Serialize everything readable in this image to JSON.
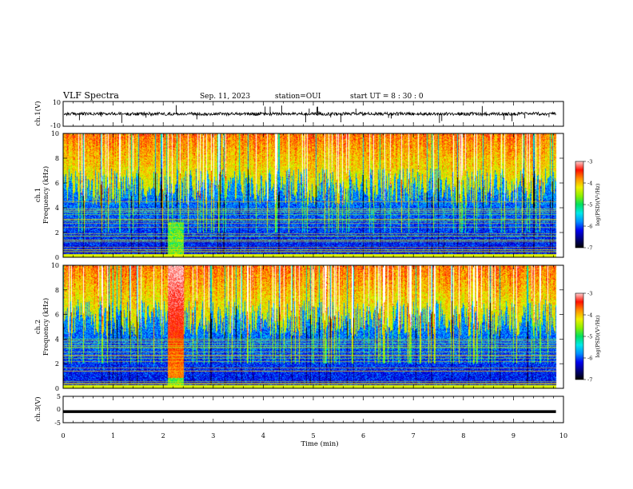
{
  "header": {
    "title": "VLF Spectra",
    "date": "Sep. 11, 2023",
    "station": "station=OUI",
    "start_time": "start  UT =   8 : 30 : 0"
  },
  "colormap": {
    "stops": [
      "#000000",
      "#00007a",
      "#0000f0",
      "#0090ff",
      "#00e8e8",
      "#00e060",
      "#8cf000",
      "#f0f000",
      "#ff9000",
      "#ff1000",
      "#ffd0d0",
      "#ffffff"
    ]
  },
  "chart_data": [
    {
      "type": "line",
      "panel": "ch1-waveform",
      "ylabel": "ch.1(V)",
      "ylim": [
        -10,
        10
      ],
      "yticks": [
        "10",
        "-10"
      ],
      "baseline": 0
    },
    {
      "type": "heatmap",
      "panel": "ch1-spectrogram",
      "ylabel": "ch.1\nFrequency (kHz)",
      "ylim": [
        0,
        10
      ],
      "yticks": [
        "0",
        "2",
        "4",
        "6",
        "8",
        "10"
      ],
      "colorbar": {
        "label": "log(PSD)(V²/Hz)",
        "range": [
          -7,
          -3
        ],
        "ticks": [
          "-3",
          "-4",
          "-5",
          "-6",
          "-7"
        ]
      }
    },
    {
      "type": "heatmap",
      "panel": "ch2-spectrogram",
      "ylabel": "ch.2\nFrequency (kHz)",
      "ylim": [
        0,
        10
      ],
      "yticks": [
        "0",
        "2",
        "4",
        "6",
        "8",
        "10"
      ],
      "colorbar": {
        "label": "log(PSD)(V²/Hz)",
        "range": [
          -7,
          -3
        ],
        "ticks": [
          "-3",
          "-4",
          "-5",
          "-6",
          "-7"
        ]
      }
    },
    {
      "type": "line",
      "panel": "ch3-waveform",
      "ylabel": "ch.3(V)",
      "ylim": [
        -5,
        5
      ],
      "yticks": [
        "5",
        "0",
        "-5"
      ],
      "baseline": -0.8
    }
  ],
  "x_axis": {
    "label": "Time (min)",
    "range": [
      0,
      10
    ],
    "ticks": [
      "0",
      "1",
      "2",
      "3",
      "4",
      "5",
      "6",
      "7",
      "8",
      "9",
      "10"
    ],
    "data_end": 9.85,
    "burst_window": [
      2.1,
      2.4
    ]
  }
}
